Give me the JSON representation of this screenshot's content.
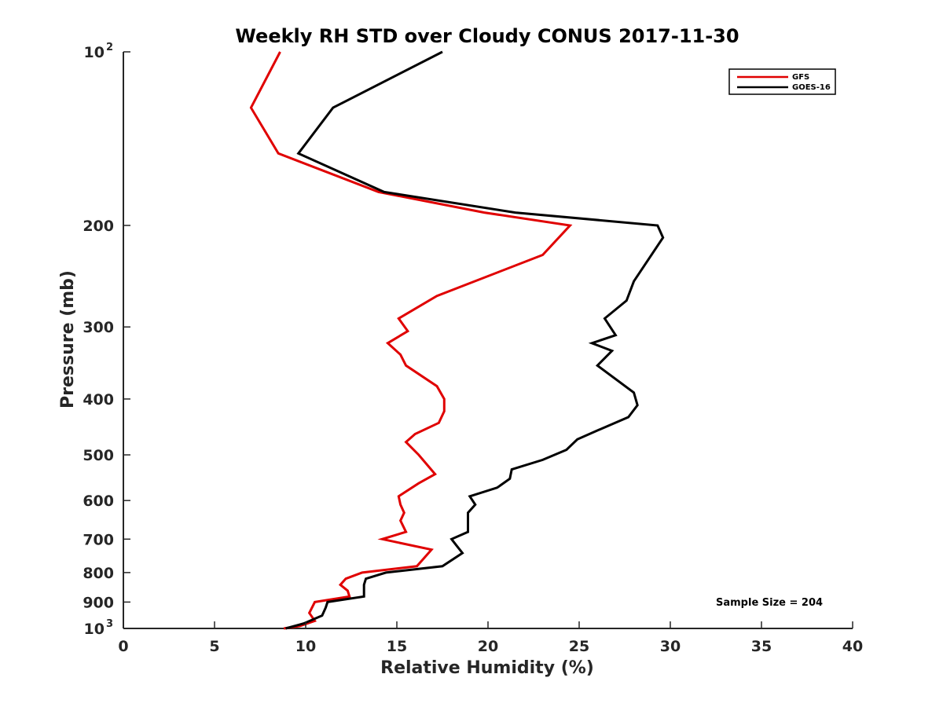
{
  "chart_data": {
    "type": "line",
    "title": "Weekly RH STD over Cloudy CONUS 2017-11-30",
    "xlabel": "Relative Humidity (%)",
    "ylabel": "Pressure (mb)",
    "xlim": [
      0,
      40
    ],
    "ylim": [
      100,
      1000
    ],
    "y_scale": "log",
    "y_inverted": true,
    "grid": false,
    "legend_position": "top-right",
    "x_ticks": [
      "0",
      "5",
      "10",
      "15",
      "20",
      "25",
      "30",
      "35",
      "40"
    ],
    "y_ticks": [
      {
        "value": 100,
        "base": "10",
        "exp": "2"
      },
      {
        "value": 200,
        "label": "200"
      },
      {
        "value": 300,
        "label": "300"
      },
      {
        "value": 400,
        "label": "400"
      },
      {
        "value": 500,
        "label": "500"
      },
      {
        "value": 600,
        "label": "600"
      },
      {
        "value": 700,
        "label": "700"
      },
      {
        "value": 800,
        "label": "800"
      },
      {
        "value": 900,
        "label": "900"
      },
      {
        "value": 1000,
        "base": "10",
        "exp": "3"
      }
    ],
    "annotation": "Sample Size = 204",
    "series": [
      {
        "name": "GFS",
        "color": "#e00000",
        "points": [
          [
            8.6,
            100
          ],
          [
            7.0,
            125
          ],
          [
            8.5,
            150
          ],
          [
            14.0,
            175
          ],
          [
            19.8,
            190
          ],
          [
            24.5,
            200
          ],
          [
            23.0,
            225
          ],
          [
            17.2,
            265
          ],
          [
            15.1,
            290
          ],
          [
            15.6,
            305
          ],
          [
            14.5,
            320
          ],
          [
            15.2,
            335
          ],
          [
            15.5,
            350
          ],
          [
            17.2,
            380
          ],
          [
            17.6,
            400
          ],
          [
            17.6,
            420
          ],
          [
            17.3,
            440
          ],
          [
            16.0,
            460
          ],
          [
            15.5,
            475
          ],
          [
            16.2,
            500
          ],
          [
            17.1,
            540
          ],
          [
            16.2,
            560
          ],
          [
            15.1,
            590
          ],
          [
            15.2,
            610
          ],
          [
            15.4,
            630
          ],
          [
            15.2,
            650
          ],
          [
            15.5,
            680
          ],
          [
            14.2,
            700
          ],
          [
            16.9,
            730
          ],
          [
            16.1,
            780
          ],
          [
            13.1,
            800
          ],
          [
            12.2,
            820
          ],
          [
            11.9,
            840
          ],
          [
            12.3,
            860
          ],
          [
            12.4,
            880
          ],
          [
            10.5,
            900
          ],
          [
            10.2,
            940
          ],
          [
            10.5,
            970
          ],
          [
            9.7,
            990
          ],
          [
            8.8,
            1000
          ]
        ]
      },
      {
        "name": "GOES-16",
        "color": "#000000",
        "points": [
          [
            17.5,
            100
          ],
          [
            11.5,
            125
          ],
          [
            9.6,
            150
          ],
          [
            14.3,
            175
          ],
          [
            21.5,
            190
          ],
          [
            29.3,
            200
          ],
          [
            29.6,
            210
          ],
          [
            28.0,
            250
          ],
          [
            27.6,
            270
          ],
          [
            26.4,
            290
          ],
          [
            27.0,
            310
          ],
          [
            25.7,
            320
          ],
          [
            26.8,
            330
          ],
          [
            26.0,
            350
          ],
          [
            28.0,
            390
          ],
          [
            28.2,
            410
          ],
          [
            27.7,
            430
          ],
          [
            25.9,
            455
          ],
          [
            24.9,
            470
          ],
          [
            24.3,
            490
          ],
          [
            23.0,
            510
          ],
          [
            21.3,
            530
          ],
          [
            21.2,
            550
          ],
          [
            20.5,
            570
          ],
          [
            19.0,
            590
          ],
          [
            19.3,
            610
          ],
          [
            18.9,
            630
          ],
          [
            18.9,
            660
          ],
          [
            18.9,
            680
          ],
          [
            18.0,
            700
          ],
          [
            18.3,
            720
          ],
          [
            18.6,
            740
          ],
          [
            17.5,
            780
          ],
          [
            14.4,
            800
          ],
          [
            13.3,
            820
          ],
          [
            13.2,
            840
          ],
          [
            13.2,
            880
          ],
          [
            11.2,
            900
          ],
          [
            11.1,
            920
          ],
          [
            10.9,
            950
          ],
          [
            9.9,
            980
          ],
          [
            8.9,
            1000
          ]
        ]
      }
    ]
  }
}
